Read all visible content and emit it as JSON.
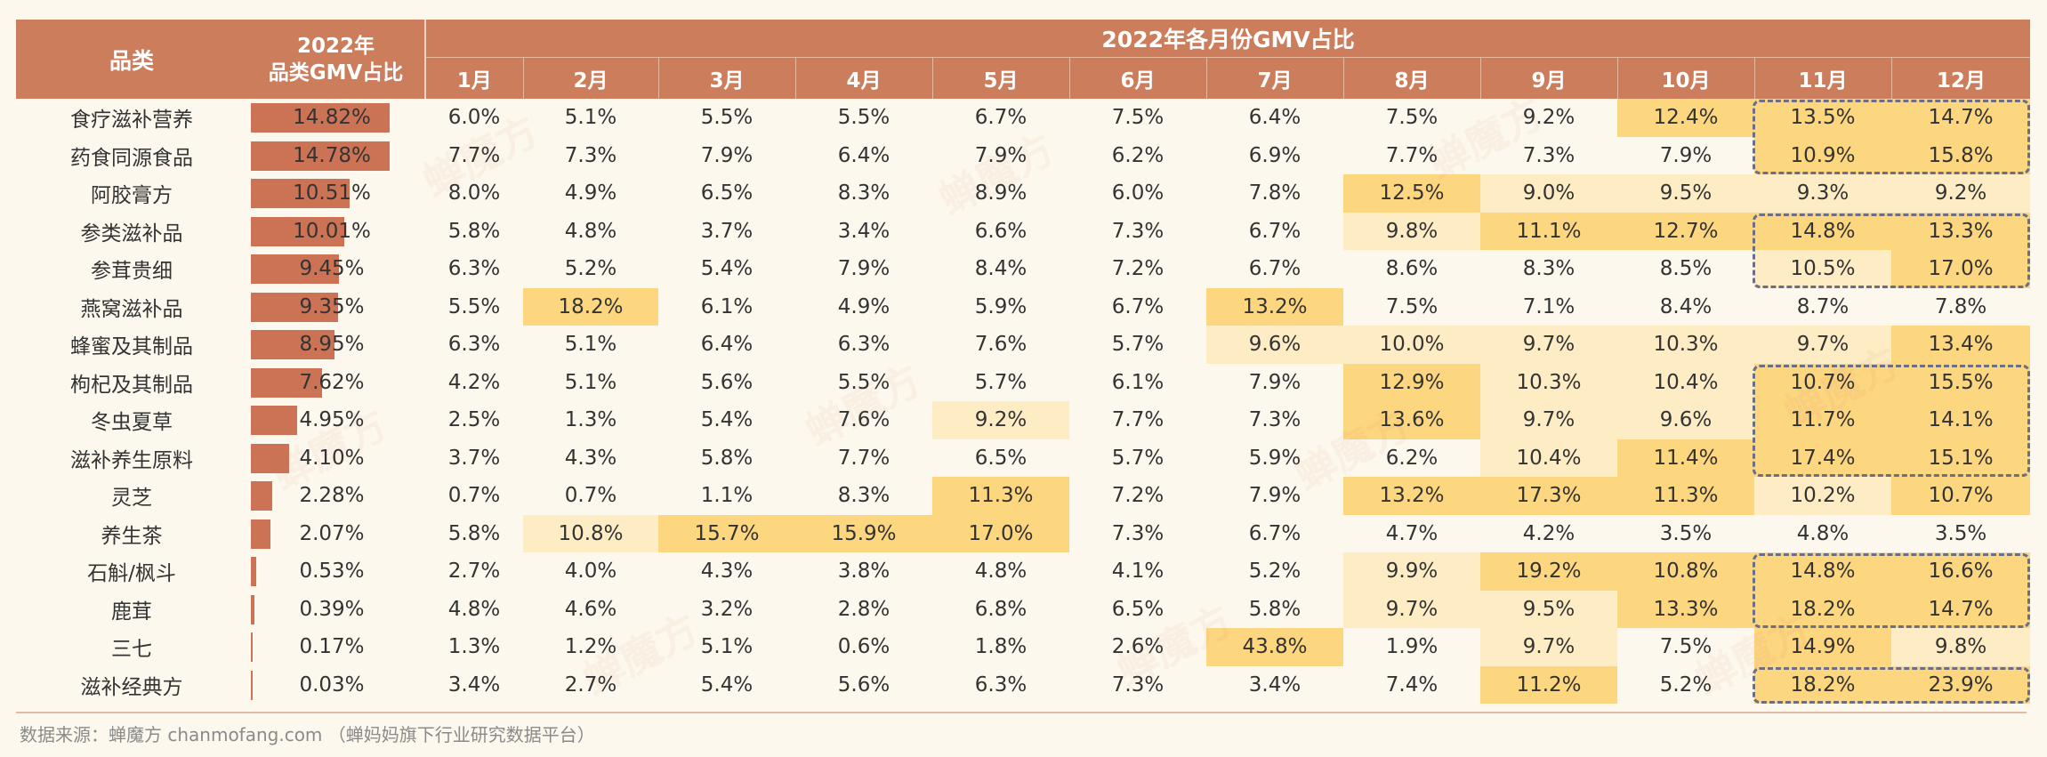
{
  "header": {
    "category_label": "品类",
    "share_label_line1": "2022年",
    "share_label_line2": "品类GMV占比",
    "months_title": "2022年各月份GMV占比",
    "months": [
      "1月",
      "2月",
      "3月",
      "4月",
      "5月",
      "6月",
      "7月",
      "8月",
      "9月",
      "10月",
      "11月",
      "12月"
    ]
  },
  "footer": "数据来源：蝉魔方 chanmofang.com （蝉妈妈旗下行业研究数据平台）",
  "watermark": "蝉魔方",
  "colors": {
    "header": "#cc7d5c",
    "bar": "#cc7355",
    "highlight_light": "#fdecc4",
    "highlight_strong": "#fdd680",
    "dash_box": "#6b6f86"
  },
  "chart_data": {
    "type": "table",
    "title": "2022年各月份GMV占比",
    "columns": [
      "品类",
      "2022年品类GMV占比",
      "1月",
      "2月",
      "3月",
      "4月",
      "5月",
      "6月",
      "7月",
      "8月",
      "9月",
      "10月",
      "11月",
      "12月"
    ],
    "rows": [
      {
        "cat": "食疗滋补营养",
        "share": "14.82%",
        "share_val": 14.82,
        "m": [
          "6.0%",
          "5.1%",
          "5.5%",
          "5.5%",
          "6.7%",
          "7.5%",
          "6.4%",
          "7.5%",
          "9.2%",
          "12.4%",
          "13.5%",
          "14.7%"
        ],
        "h": [
          0,
          0,
          0,
          0,
          0,
          0,
          0,
          0,
          0,
          2,
          2,
          2
        ]
      },
      {
        "cat": "药食同源食品",
        "share": "14.78%",
        "share_val": 14.78,
        "m": [
          "7.7%",
          "7.3%",
          "7.9%",
          "6.4%",
          "7.9%",
          "6.2%",
          "6.9%",
          "7.7%",
          "7.3%",
          "7.9%",
          "10.9%",
          "15.8%"
        ],
        "h": [
          0,
          0,
          0,
          0,
          0,
          0,
          0,
          0,
          0,
          0,
          2,
          2
        ]
      },
      {
        "cat": "阿胶膏方",
        "share": "10.51%",
        "share_val": 10.51,
        "m": [
          "8.0%",
          "4.9%",
          "6.5%",
          "8.3%",
          "8.9%",
          "6.0%",
          "7.8%",
          "12.5%",
          "9.0%",
          "9.5%",
          "9.3%",
          "9.2%"
        ],
        "h": [
          0,
          0,
          0,
          0,
          0,
          0,
          0,
          2,
          1,
          1,
          1,
          1
        ]
      },
      {
        "cat": "参类滋补品",
        "share": "10.01%",
        "share_val": 10.01,
        "m": [
          "5.8%",
          "4.8%",
          "3.7%",
          "3.4%",
          "6.6%",
          "7.3%",
          "6.7%",
          "9.8%",
          "11.1%",
          "12.7%",
          "14.8%",
          "13.3%"
        ],
        "h": [
          0,
          0,
          0,
          0,
          0,
          0,
          0,
          1,
          2,
          2,
          2,
          2
        ]
      },
      {
        "cat": "参茸贵细",
        "share": "9.45%",
        "share_val": 9.45,
        "m": [
          "6.3%",
          "5.2%",
          "5.4%",
          "7.9%",
          "8.4%",
          "7.2%",
          "6.7%",
          "8.6%",
          "8.3%",
          "8.5%",
          "10.5%",
          "17.0%"
        ],
        "h": [
          0,
          0,
          0,
          0,
          0,
          0,
          0,
          0,
          0,
          0,
          1,
          2
        ]
      },
      {
        "cat": "燕窝滋补品",
        "share": "9.35%",
        "share_val": 9.35,
        "m": [
          "5.5%",
          "18.2%",
          "6.1%",
          "4.9%",
          "5.9%",
          "6.7%",
          "13.2%",
          "7.5%",
          "7.1%",
          "8.4%",
          "8.7%",
          "7.8%"
        ],
        "h": [
          0,
          2,
          0,
          0,
          0,
          0,
          2,
          0,
          0,
          0,
          0,
          0
        ]
      },
      {
        "cat": "蜂蜜及其制品",
        "share": "8.95%",
        "share_val": 8.95,
        "m": [
          "6.3%",
          "5.1%",
          "6.4%",
          "6.3%",
          "7.6%",
          "5.7%",
          "9.6%",
          "10.0%",
          "9.7%",
          "10.3%",
          "9.7%",
          "13.4%"
        ],
        "h": [
          0,
          0,
          0,
          0,
          0,
          0,
          1,
          1,
          1,
          1,
          1,
          2
        ]
      },
      {
        "cat": "枸杞及其制品",
        "share": "7.62%",
        "share_val": 7.62,
        "m": [
          "4.2%",
          "5.1%",
          "5.6%",
          "5.5%",
          "5.7%",
          "6.1%",
          "7.9%",
          "12.9%",
          "10.3%",
          "10.4%",
          "10.7%",
          "15.5%"
        ],
        "h": [
          0,
          0,
          0,
          0,
          0,
          0,
          0,
          2,
          1,
          1,
          2,
          2
        ]
      },
      {
        "cat": "冬虫夏草",
        "share": "4.95%",
        "share_val": 4.95,
        "m": [
          "2.5%",
          "1.3%",
          "5.4%",
          "7.6%",
          "9.2%",
          "7.7%",
          "7.3%",
          "13.6%",
          "9.7%",
          "9.6%",
          "11.7%",
          "14.1%"
        ],
        "h": [
          0,
          0,
          0,
          0,
          1,
          0,
          0,
          2,
          1,
          1,
          2,
          2
        ]
      },
      {
        "cat": "滋补养生原料",
        "share": "4.10%",
        "share_val": 4.1,
        "m": [
          "3.7%",
          "4.3%",
          "5.8%",
          "7.7%",
          "6.5%",
          "5.7%",
          "5.9%",
          "6.2%",
          "10.4%",
          "11.4%",
          "17.4%",
          "15.1%"
        ],
        "h": [
          0,
          0,
          0,
          0,
          0,
          0,
          0,
          0,
          1,
          2,
          2,
          2
        ]
      },
      {
        "cat": "灵芝",
        "share": "2.28%",
        "share_val": 2.28,
        "m": [
          "0.7%",
          "0.7%",
          "1.1%",
          "8.3%",
          "11.3%",
          "7.2%",
          "7.9%",
          "13.2%",
          "17.3%",
          "11.3%",
          "10.2%",
          "10.7%"
        ],
        "h": [
          0,
          0,
          0,
          0,
          2,
          0,
          0,
          2,
          2,
          2,
          1,
          2
        ]
      },
      {
        "cat": "养生茶",
        "share": "2.07%",
        "share_val": 2.07,
        "m": [
          "5.8%",
          "10.8%",
          "15.7%",
          "15.9%",
          "17.0%",
          "7.3%",
          "6.7%",
          "4.7%",
          "4.2%",
          "3.5%",
          "4.8%",
          "3.5%"
        ],
        "h": [
          0,
          1,
          2,
          2,
          2,
          0,
          0,
          0,
          0,
          0,
          0,
          0
        ]
      },
      {
        "cat": "石斛/枫斗",
        "share": "0.53%",
        "share_val": 0.53,
        "m": [
          "2.7%",
          "4.0%",
          "4.3%",
          "3.8%",
          "4.8%",
          "4.1%",
          "5.2%",
          "9.9%",
          "19.2%",
          "10.8%",
          "14.8%",
          "16.6%"
        ],
        "h": [
          0,
          0,
          0,
          0,
          0,
          0,
          0,
          1,
          2,
          2,
          2,
          2
        ]
      },
      {
        "cat": "鹿茸",
        "share": "0.39%",
        "share_val": 0.39,
        "m": [
          "4.8%",
          "4.6%",
          "3.2%",
          "2.8%",
          "6.8%",
          "6.5%",
          "5.8%",
          "9.7%",
          "9.5%",
          "13.3%",
          "18.2%",
          "14.7%"
        ],
        "h": [
          0,
          0,
          0,
          0,
          0,
          0,
          0,
          1,
          1,
          2,
          2,
          2
        ]
      },
      {
        "cat": "三七",
        "share": "0.17%",
        "share_val": 0.17,
        "m": [
          "1.3%",
          "1.2%",
          "5.1%",
          "0.6%",
          "1.8%",
          "2.6%",
          "43.8%",
          "1.9%",
          "9.7%",
          "7.5%",
          "14.9%",
          "9.8%"
        ],
        "h": [
          0,
          0,
          0,
          0,
          0,
          0,
          2,
          0,
          1,
          0,
          2,
          1
        ]
      },
      {
        "cat": "滋补经典方",
        "share": "0.03%",
        "share_val": 0.03,
        "m": [
          "3.4%",
          "2.7%",
          "5.4%",
          "5.6%",
          "6.3%",
          "7.3%",
          "3.4%",
          "7.4%",
          "11.2%",
          "5.2%",
          "18.2%",
          "23.9%"
        ],
        "h": [
          0,
          0,
          0,
          0,
          0,
          0,
          0,
          0,
          2,
          0,
          2,
          2
        ]
      }
    ]
  }
}
